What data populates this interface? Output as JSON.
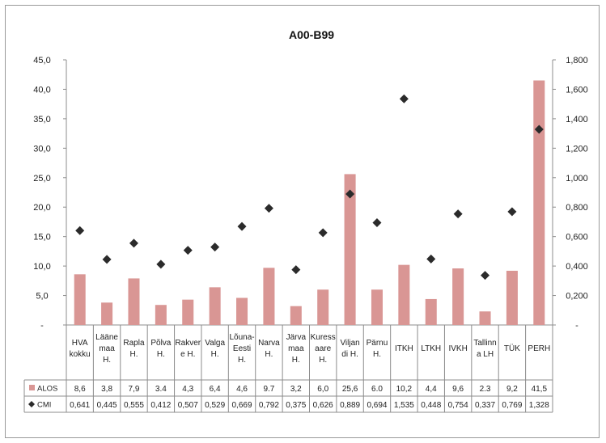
{
  "chart_data": {
    "type": "bar",
    "title": "A00-B99",
    "categories": [
      [
        "HVA",
        "kokku"
      ],
      [
        "Lääne",
        "maa",
        "H."
      ],
      [
        "Rapla",
        "H."
      ],
      [
        "Põlva",
        "H."
      ],
      [
        "Rakver",
        "e H."
      ],
      [
        "Valga",
        "H."
      ],
      [
        "Lõuna-",
        "Eesti",
        "H."
      ],
      [
        "Narva",
        "H."
      ],
      [
        "Järva",
        "maa",
        "H."
      ],
      [
        "Kuress",
        "aare",
        "H."
      ],
      [
        "Viljan",
        "di H."
      ],
      [
        "Pärnu",
        "H."
      ],
      [
        "ITKH"
      ],
      [
        "LTKH"
      ],
      [
        "IVKH"
      ],
      [
        "Tallinn",
        "a LH"
      ],
      [
        "TÜK"
      ],
      [
        "PERH"
      ]
    ],
    "series": [
      {
        "name": "ALOS",
        "axis": "left",
        "kind": "bar",
        "color": "#d99694",
        "values": [
          8.6,
          3.8,
          7.9,
          3.4,
          4.3,
          6.4,
          4.6,
          9.7,
          3.2,
          6.0,
          25.6,
          6.0,
          10.2,
          4.4,
          9.6,
          2.3,
          9.2,
          41.5
        ],
        "labels": [
          "8,6",
          "3,8",
          "7,9",
          "3.4",
          "4,3",
          "6,4",
          "4,6",
          "9.7",
          "3,2",
          "6,0",
          "25,6",
          "6.0",
          "10,2",
          "4,4",
          "9,6",
          "2.3",
          "9,2",
          "41,5"
        ]
      },
      {
        "name": "CMI",
        "axis": "right",
        "kind": "marker",
        "color": "#2b2b2b",
        "values": [
          0.641,
          0.445,
          0.555,
          0.412,
          0.507,
          0.529,
          0.669,
          0.792,
          0.375,
          0.626,
          0.889,
          0.694,
          1.535,
          0.448,
          0.754,
          0.337,
          0.769,
          1.328
        ],
        "labels": [
          "0,641",
          "0,445",
          "0,555",
          "0,412",
          "0,507",
          "0,529",
          "0,669",
          "0,792",
          "0,375",
          "0,626",
          "0,889",
          "0,694",
          "1,535",
          "0,448",
          "0,754",
          "0,337",
          "0,769",
          "1,328"
        ]
      }
    ],
    "y_left": {
      "lim": [
        0,
        45
      ],
      "ticks": [
        0,
        5,
        10,
        15,
        20,
        25,
        30,
        35,
        40,
        45
      ],
      "tick_labels": [
        "-",
        "5,0",
        "10,0",
        "15,0",
        "20,0",
        "25,0",
        "30,0",
        "35,0",
        "40,0",
        "45,0"
      ]
    },
    "y_right": {
      "lim": [
        0,
        1.8
      ],
      "ticks": [
        0,
        0.2,
        0.4,
        0.6,
        0.8,
        1.0,
        1.2,
        1.4,
        1.6,
        1.8
      ],
      "tick_labels": [
        "-",
        "0,200",
        "0,400",
        "0,600",
        "0,800",
        "1,000",
        "1,200",
        "1,400",
        "1,600",
        "1,800"
      ]
    },
    "data_table": true,
    "grid": false
  }
}
